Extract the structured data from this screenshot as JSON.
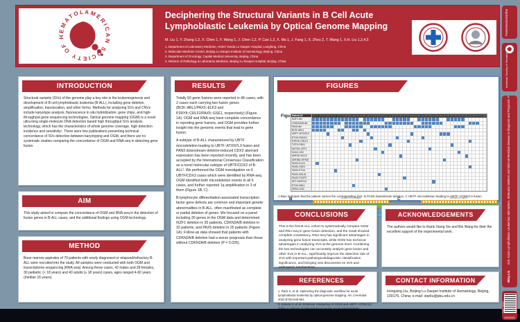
{
  "header": {
    "title": "Deciphering the Structural Variants in B Cell Acute Lymphoblastic Leukemia by Optical Genome Mapping",
    "authors": "M. Liu 1, Y. Zhang 1,2, X. Chen 1, F. Wang 1, J. Chen 1,2, P. Cao 1,2, X. Ma 1, J. Fang 1, X. Zhou 2, T. Wang 1, X.H. Liu 1,2,4,5",
    "affiliations": [
      "1. Department of Laboratory Medicine, Hebei Yanda Lu Daopei Hospital, Langfang, China",
      "2. Molecular Medicine Center, Beijing Lu Daopei Institute of Hematology, Beijing, China",
      "3. Department of Oncology, Capital Medical University, Beijing, China",
      "4. Division of Pathology & Laboratory Medicine, Beijing Lu Daopei Hospital, Beijing, China"
    ],
    "ash_logo_text": "AMERICAN SOCIETY OF HEMATOLOGY"
  },
  "sections": {
    "introduction": {
      "title": "INTRODUCTION",
      "body": "Structural variants (SVs) of the genome play a key role in the leukemogenesis and development of B cell lymphoblastic leukemia (B-ALL), including gene deletion, amplification, translocation, and other forms. Methods for analyzing SVs and CNVs include karyotype analysis, fluorescence in situ hybridization, gene chips, and high-throughput gene sequencing technologies. Optical genome mapping (OGM) is a novel ultra-long single-molecule DNA detection based high throughput SVs analysis technology, which has the characteristics of whole genome coverage, high detection incidence and sensitivity¹. There were few publications presenting technical concordance of SVs detection between karyotyping and OGM, and there are no systematic studies comparing the concordance of OGM and RNA-seq in detecting gene fusion."
    },
    "aim": {
      "title": "AIM",
      "body": "This study aimed to compare the concordance of OGM and RNA-seq in the detection of fusion genes in B-ALL cases, and the additional findings using OGM technology."
    },
    "method": {
      "title": "METHOD",
      "body": "Bone marrow aspirates of 70 patients with newly diagnosed or relapsed/refractory B-ALL were recruited into the study. All samples were conducted with both OGM and transcriptome sequencing (RNA-seq). Among these cases, 42 males and 28 females, 30 pediatric (< 18 years) and 40 adults (≥ 18 years) cases, ages ranged 4-60 years (median 16 years)."
    },
    "results": {
      "title": "RESULTS",
      "paragraphs": [
        "Totally 50 gene fusions were reported in 48 cases, with 2 cases each carrying two fusion genes (BCR::ABL1/PAX5::ELK3 and P2RY8::CRLF2/PAX5::GSE1, respectively) (Figure 1A). OGM and RNA-seq have complete concordance in reporting gene fusions, and OGM provides further insight into the genomic events that lead to gene fusion.",
        "A subtype of B-ALL characterized by UBTF microdeletion leading to UBTF::ATXN7L3 fusion and PAN3 downstream deletion-induced CDX2 aberrant expression has been reported recently, and has been accepted by the International Consensus Classification as a novel molecular subtype of UBTF/CDX2 of B-ALL². We performed the OGM investigation on 6 UBTF/CDX2 cases which were identified by RNA-seq. OGM identified both microdeletion events in all 6 cases, and further reported 1q amplification in 3 of them (Figure 1B, C).",
        "B-lymphocyte differentiation-associated transcription factor gene defects are common and important genetic abnormalities in B-ALL, often manifested as complete or partial deletion of genes. We focused on a panel including 30 genes in the OGM data and determined IKZF1 deletion in 35 patients, CDKN2A/B deletion in 32 patients, and PAX5 deletion in 25 patients (Figure 1A). Follow-up data showed that patients with CDKN2A/B deletion had a worse prognosis than those without CDKN2A/B deletion (P = 0.025)."
      ]
    },
    "conclusions": {
      "title": "CONCLUSIONS",
      "body": "This is the first B-ALL cohort to systematically compare OGM and RNA-seq in gene fusion detection, and the result showed complete consistency. RNA-seq has significant advantages in analyzing gene fusion transcripts, while OGM has technical advantages in analyzing SVs at the genome level. Combining the two technologies can accurately analyze gene fusion and other SVs in B-ALL, significantly improve the detection rate of SVs with important pathological/diagnostic classification significance, and bringing new discoveries on SVs and pathogenic mechanisms."
    },
    "acknowledgements": {
      "title": "ACKNOWLEDGEMENTS",
      "body": "The authors would like to thank Xiang Xie and Bin Wang for their the excellent support of the experimental work."
    },
    "references": {
      "title": "REFERENCES",
      "items": [
        "1. Rack K, et al. Optimizing the diagnostic workflow for acute lymphoblastic leukemia by optical genome mapping. Am J Hematol. 2022;97(5):548-561.",
        "2. Kimura S, et al. Enhancer retargeting of CDX2 and UBTF::ATXN7L3 define a subtype of high-risk B-progenitor acute lymphoblastic leukemia. Blood. 2022;139(24):3519-3531."
      ]
    },
    "contact": {
      "title": "CONTACT INFORMATION",
      "body": "Hongxing Liu, Beijing Lu Daopei Institute of Hematology, Beijing, 100176, China; e-mail: starliu@pku.edu.cn"
    }
  },
  "figures": {
    "title": "FIGURES",
    "figure_label": "Figure 1",
    "panel_a_label": "A",
    "panel_b_label": "B",
    "panel_c_label": "C",
    "caption": "A Blue indicates that the patient carries the corresponding SVs. B PAN3 downstream deletion. C UBTF microdeletion leading to UBTF::ATXN7L3 fusion",
    "heatmap": {
      "type": "heatmap",
      "header_label": "Patient ID",
      "columns": 48,
      "fill_color": "#4E86C6",
      "rows": [
        {
          "label": "IKZF1 del",
          "cells": [
            1,
            2,
            3,
            4,
            5,
            6,
            7,
            8,
            9,
            10,
            11,
            12,
            13,
            15,
            16,
            17,
            18,
            19,
            20,
            23,
            24,
            25,
            26,
            27,
            30,
            31,
            32,
            33,
            34,
            35,
            38,
            39,
            40,
            41,
            42
          ]
        },
        {
          "label": "CDKN2A/B del",
          "cells": [
            1,
            2,
            3,
            4,
            5,
            6,
            7,
            8,
            10,
            11,
            12,
            13,
            14,
            15,
            16,
            21,
            22,
            23,
            24,
            25,
            26,
            27,
            28,
            31,
            32,
            33,
            34,
            35,
            36,
            44,
            45,
            46
          ]
        },
        {
          "label": "PAX5 del",
          "cells": [
            1,
            2,
            3,
            4,
            5,
            6,
            10,
            11,
            12,
            13,
            14,
            17,
            18,
            19,
            20,
            21,
            22,
            29,
            30,
            31,
            32,
            33,
            40,
            41,
            42
          ]
        },
        {
          "label": "BCR::ABL1",
          "cells": [
            1,
            2,
            3,
            4,
            8,
            9,
            12,
            13,
            15
          ]
        },
        {
          "label": "UBTF::ATXN7L3",
          "cells": [
            5,
            16,
            28,
            36,
            37,
            38
          ]
        },
        {
          "label": "ETV6::RUNX1",
          "cells": [
            9,
            17,
            24,
            31
          ]
        },
        {
          "label": "P2RY8::CRLF2",
          "cells": [
            14,
            27,
            44
          ]
        },
        {
          "label": "TCF3::PBX1",
          "cells": [
            11,
            22,
            39
          ]
        },
        {
          "label": "KMT2A::AFF1",
          "cells": [
            18,
            33
          ]
        },
        {
          "label": "DUX4::IGH",
          "cells": [
            20,
            41
          ]
        },
        {
          "label": "MEF2D::BCL9",
          "cells": [
            25,
            43
          ]
        },
        {
          "label": "ZNF384::EP300",
          "cells": [
            13,
            37
          ]
        },
        {
          "label": "PAX5::ELK3",
          "cells": [
            2
          ]
        },
        {
          "label": "PAX5::GSE1",
          "cells": [
            44
          ]
        },
        {
          "label": "PAX5::ETV6",
          "cells": [
            7
          ]
        },
        {
          "label": "PAX5::NOL4L",
          "cells": [
            19
          ]
        },
        {
          "label": "PAX5::FOXP1",
          "cells": [
            26
          ]
        },
        {
          "label": "SET::NUP214",
          "cells": [
            34
          ]
        },
        {
          "label": "ETV6::ABL1",
          "cells": [
            12
          ]
        },
        {
          "label": "ZEB2::LINC",
          "cells": [
            21
          ]
        }
      ]
    },
    "panel_b": {
      "genes": "CDX2   FLT3   PAN3",
      "ref_label": "RefSeq 13",
      "sample_label": "Sample"
    },
    "panel_c": {
      "genes": "ATXN7L3   UBTF",
      "ref_label": "RefSeq 17",
      "sample_label": "Sample"
    }
  },
  "sidebar": {
    "top_badge": "PosterSessionOnline",
    "ash_badge": "American Society of Hematology",
    "session": "618. Acute Lymphoblastic Leukemias: Biomarkers, Molecular Markers and Minimal Residual Disease in Diagnosis and Prognosis: Poster I",
    "presenter": "Ming Liu",
    "poster_code": "SAT-1610",
    "event": "ASH2023"
  },
  "colors": {
    "crimson": "#B12B36",
    "background": "#7E96A7",
    "heatmap_blue": "#4E86C6",
    "figure_border": "#4A7CB8"
  }
}
